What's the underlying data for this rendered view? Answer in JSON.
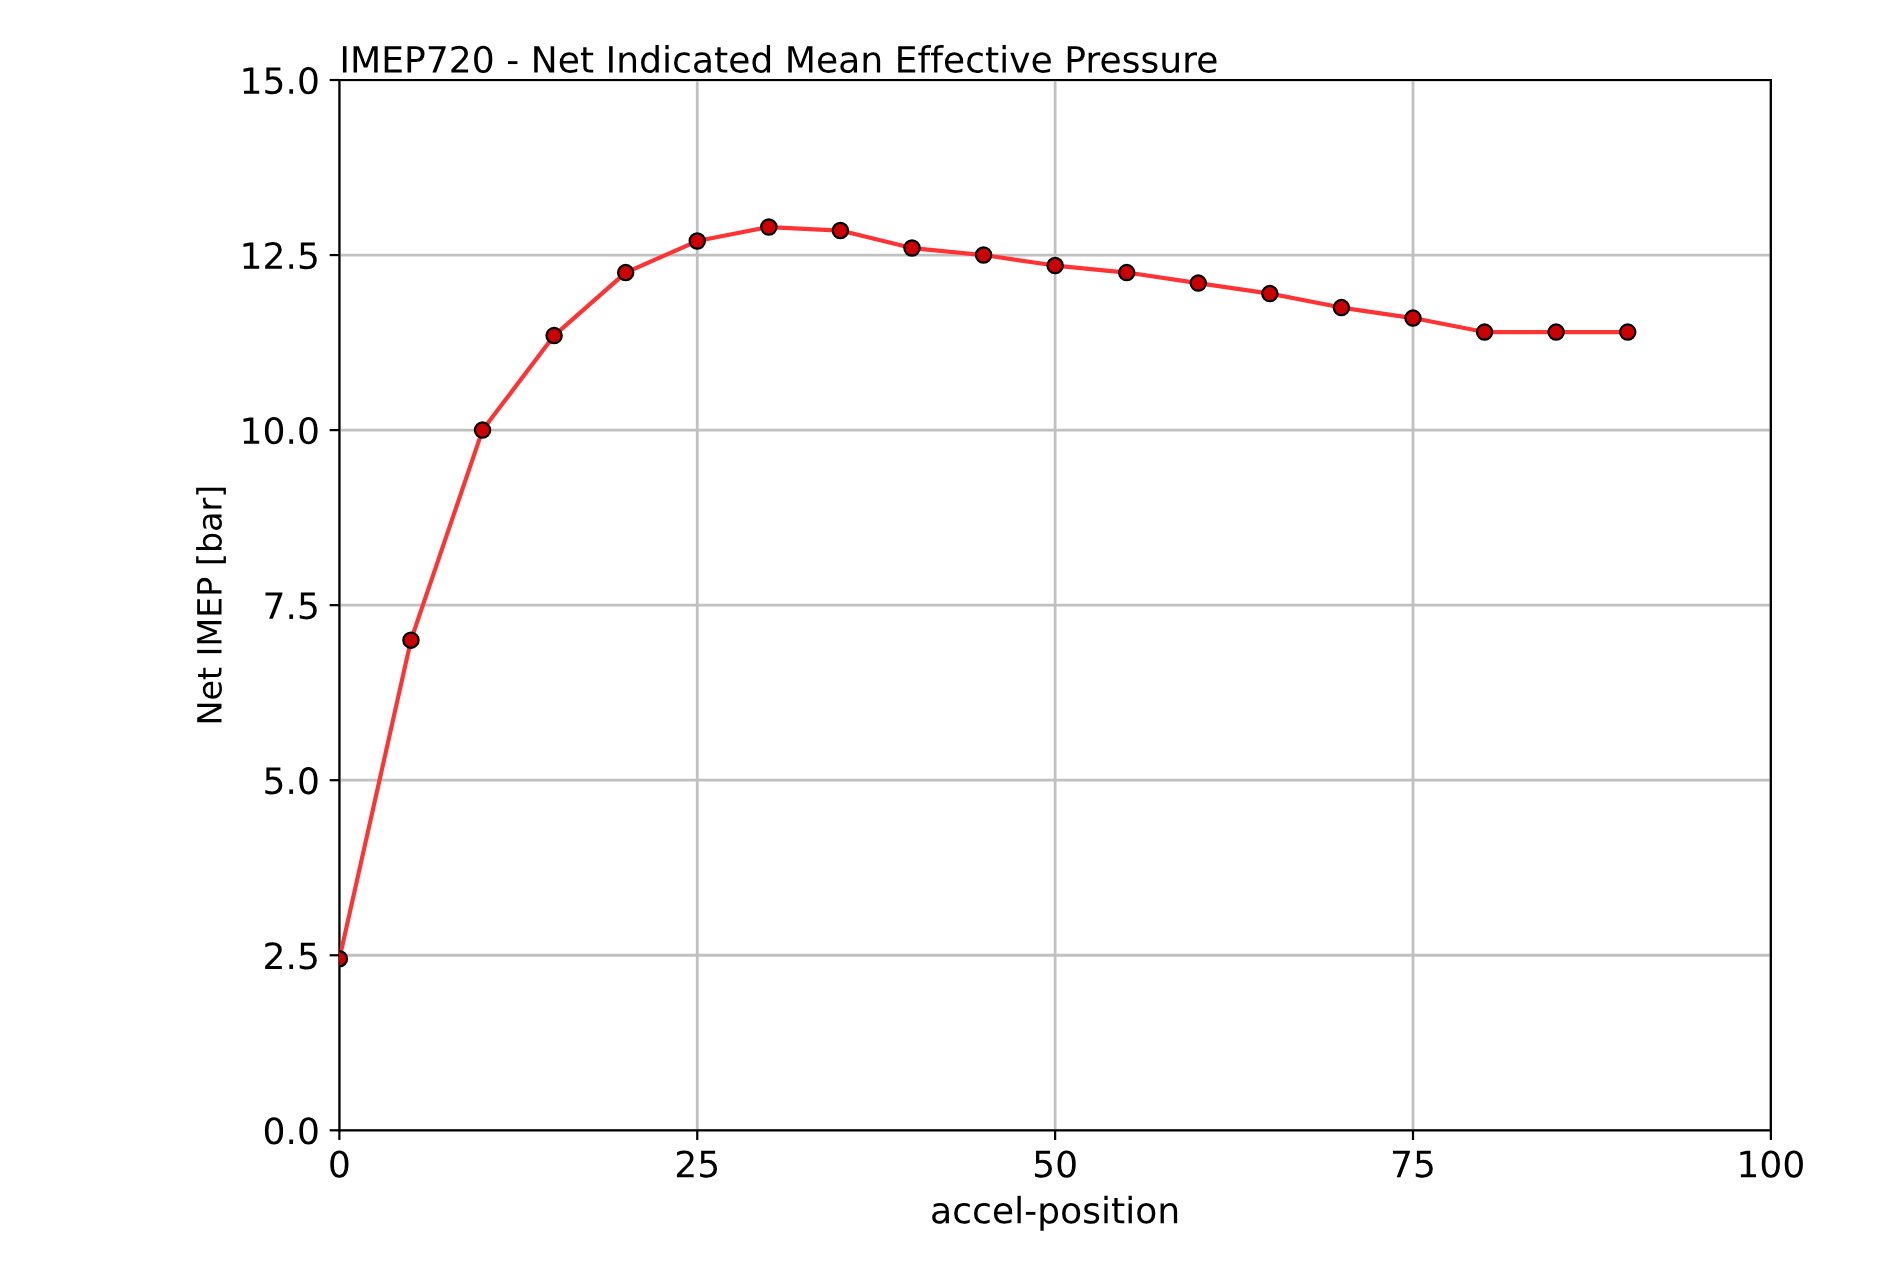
{
  "chart_data": {
    "type": "line",
    "title": "IMEP720 - Net Indicated Mean Effective Pressure",
    "xlabel": "accel-position",
    "ylabel": "Net IMEP [bar]",
    "x": [
      0,
      5,
      10,
      15,
      20,
      25,
      30,
      35,
      40,
      45,
      50,
      55,
      60,
      65,
      70,
      75,
      80,
      85,
      90
    ],
    "series": [
      {
        "color": "#ff3333",
        "values": [
          2.45,
          7.0,
          10.0,
          11.35,
          12.25,
          12.7,
          12.9,
          12.85,
          12.6,
          12.5,
          12.35,
          12.25,
          12.1,
          11.95,
          11.75,
          11.6,
          11.4,
          11.4,
          11.4
        ]
      }
    ],
    "xlim": [
      0,
      100
    ],
    "xticks": [
      0,
      25,
      50,
      75,
      100
    ],
    "ylim": [
      0,
      15
    ],
    "yticks": [
      {
        "value": 0,
        "label": "0.0"
      },
      {
        "value": 2.5,
        "label": "2.5"
      },
      {
        "value": 5,
        "label": "5.0"
      },
      {
        "value": 7.5,
        "label": "7.5"
      },
      {
        "value": 10,
        "label": "10.0"
      },
      {
        "value": 12.5,
        "label": "12.5"
      },
      {
        "value": 15,
        "label": "15.0"
      }
    ],
    "grid": true,
    "marker": "circle",
    "line_style": "solid"
  }
}
